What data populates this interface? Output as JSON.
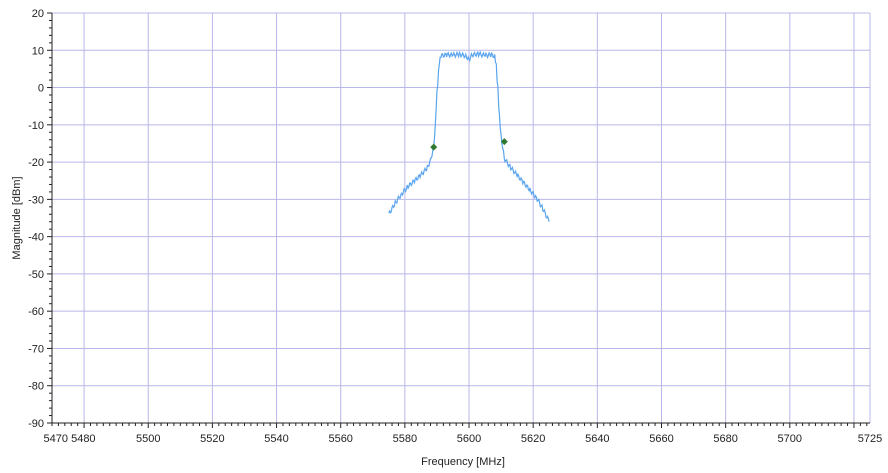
{
  "chart_data": {
    "type": "line",
    "xlabel": "Frequency [MHz]",
    "ylabel": "Magnitude [dBm]",
    "xlim": [
      5470,
      5725
    ],
    "ylim": [
      -90,
      20
    ],
    "x_ticks": [
      5470,
      5480,
      5500,
      5520,
      5540,
      5560,
      5580,
      5600,
      5620,
      5640,
      5660,
      5680,
      5700,
      5725
    ],
    "x_tick_labels": [
      "5470",
      "5480",
      "5500",
      "5520",
      "5540",
      "5560",
      "5580",
      "5600",
      "5620",
      "5640",
      "5660",
      "5680",
      "5700",
      "5725"
    ],
    "x_gridlines": [
      5480,
      5500,
      5520,
      5540,
      5560,
      5580,
      5600,
      5620,
      5640,
      5660,
      5680,
      5700,
      5720
    ],
    "y_ticks": [
      20,
      10,
      0,
      -10,
      -20,
      -30,
      -40,
      -50,
      -60,
      -70,
      -80,
      -90
    ],
    "y_tick_labels": [
      "20",
      "10",
      "0",
      "-10",
      "-20",
      "-30",
      "-40",
      "-50",
      "-60",
      "-70",
      "-80",
      "-90"
    ],
    "grid": true,
    "series": [
      {
        "color": "#5aa5ee",
        "x": [
          5575,
          5577,
          5579,
          5581,
          5583,
          5585,
          5587,
          5588,
          5589,
          5589.5,
          5590,
          5590.5,
          5591,
          5593,
          5595,
          5597,
          5599,
          5600,
          5601,
          5603,
          5605,
          5607,
          5608,
          5608.5,
          5609,
          5609.5,
          5610,
          5611,
          5613,
          5615,
          5617,
          5619,
          5621,
          5623,
          5625
        ],
        "y": [
          -34,
          -31,
          -28.5,
          -26.5,
          -25,
          -23.5,
          -21.5,
          -19.5,
          -16,
          -10,
          -1,
          5,
          8.5,
          8.8,
          8.7,
          8.9,
          8.5,
          7.5,
          8.8,
          9,
          8.6,
          8.8,
          8.3,
          5,
          -1,
          -8,
          -13,
          -19,
          -21.5,
          -23.5,
          -25.5,
          -27.5,
          -29.5,
          -32.5,
          -36
        ]
      }
    ],
    "markers": {
      "color": "#2f7a2f",
      "points": [
        {
          "x": 5589,
          "y": -16
        },
        {
          "x": 5611,
          "y": -14.5
        }
      ]
    }
  },
  "colors": {
    "background": "#ffffff",
    "grid": "#b8b8e8",
    "axis": "#222222"
  }
}
